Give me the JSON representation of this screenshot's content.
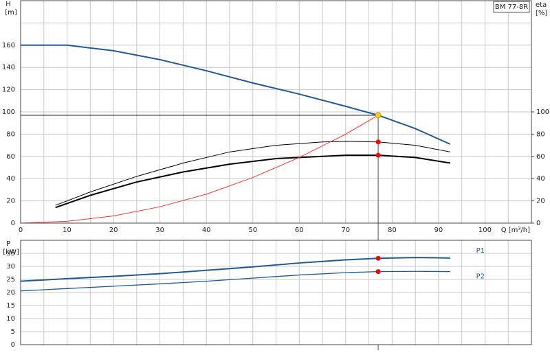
{
  "chart_data": [
    {
      "type": "line",
      "tag": "BM 77-8R",
      "y_label": "H",
      "y_unit": "[m]",
      "y2_label": "eta",
      "y2_unit": "[%]",
      "x_label": "Q [m³/h]",
      "xlim": [
        0,
        110
      ],
      "xticks": [
        0,
        10,
        20,
        30,
        40,
        50,
        60,
        70,
        80,
        90,
        100
      ],
      "xgrid": [
        5,
        15,
        25,
        35,
        45,
        55,
        65,
        75,
        85,
        95,
        105
      ],
      "ylim": [
        0,
        200
      ],
      "yticks": [
        0,
        20,
        40,
        60,
        80,
        100,
        120,
        140,
        160
      ],
      "ygrid": [
        180
      ],
      "y2lim": [
        0,
        200
      ],
      "y2ticks": [
        0,
        20,
        40,
        60,
        80,
        100
      ],
      "grid": true,
      "series": [
        {
          "color": "#1f5a96",
          "width": 2,
          "x": [
            0,
            10,
            20,
            30,
            40,
            50,
            60,
            70,
            77,
            85,
            92.5
          ],
          "values": [
            160,
            160,
            155,
            147,
            137,
            126,
            116,
            105,
            97,
            85,
            71
          ]
        },
        {
          "color": "#000000",
          "width": 1,
          "axis": "y2",
          "x": [
            7.5,
            15,
            25,
            35,
            45,
            55,
            65,
            70,
            77,
            85,
            92.5
          ],
          "values": [
            16,
            28,
            42,
            54,
            64,
            70,
            73,
            73.5,
            73,
            70,
            64
          ]
        },
        {
          "color": "#000000",
          "width": 2,
          "axis": "y2",
          "x": [
            7.5,
            15,
            25,
            35,
            45,
            55,
            65,
            70,
            77,
            85,
            92.5
          ],
          "values": [
            14,
            25,
            37,
            46,
            53,
            58,
            60,
            61,
            61,
            59,
            54
          ]
        },
        {
          "color": "#ff3030",
          "width": 1,
          "x": [
            0,
            10,
            20,
            30,
            40,
            50,
            60,
            70,
            77
          ],
          "values": [
            0,
            1.6,
            6.5,
            14.7,
            26,
            41,
            59,
            80,
            97
          ]
        }
      ],
      "duty_point": {
        "x": 77,
        "y": 97,
        "color": "#ffd020"
      },
      "points": [
        {
          "x": 77,
          "y": 73,
          "axis": "y2",
          "color": "#ff0000"
        },
        {
          "x": 77,
          "y": 61,
          "axis": "y2",
          "color": "#ff0000"
        }
      ]
    },
    {
      "type": "line",
      "y_label": "P",
      "y_unit": "[kW]",
      "xlim": [
        0,
        110
      ],
      "xticks": [
        0,
        10,
        20,
        30,
        40,
        50,
        60,
        70,
        80,
        90,
        100
      ],
      "xgrid": [
        5,
        15,
        25,
        35,
        45,
        55,
        65,
        75,
        85,
        95,
        105
      ],
      "ylim": [
        0,
        40
      ],
      "yticks": [
        0,
        5,
        10,
        15,
        20,
        25,
        30,
        35
      ],
      "grid": true,
      "series": [
        {
          "name": "P1",
          "color": "#1f5a96",
          "width": 2,
          "x": [
            0,
            10,
            20,
            30,
            40,
            50,
            60,
            70,
            77,
            85,
            92.5
          ],
          "values": [
            24.3,
            25.3,
            26.2,
            27.2,
            28.5,
            29.8,
            31.3,
            32.5,
            33.1,
            33.4,
            33.2
          ]
        },
        {
          "name": "P2",
          "color": "#1f5a96",
          "width": 1.3,
          "x": [
            0,
            10,
            20,
            30,
            40,
            50,
            60,
            70,
            77,
            85,
            92.5
          ],
          "values": [
            20.6,
            21.5,
            22.4,
            23.3,
            24.3,
            25.5,
            26.7,
            27.6,
            28,
            28.1,
            28
          ]
        }
      ],
      "points": [
        {
          "x": 77,
          "y": 33.1,
          "color": "#ff0000"
        },
        {
          "x": 77,
          "y": 28,
          "color": "#ff0000"
        }
      ]
    }
  ]
}
